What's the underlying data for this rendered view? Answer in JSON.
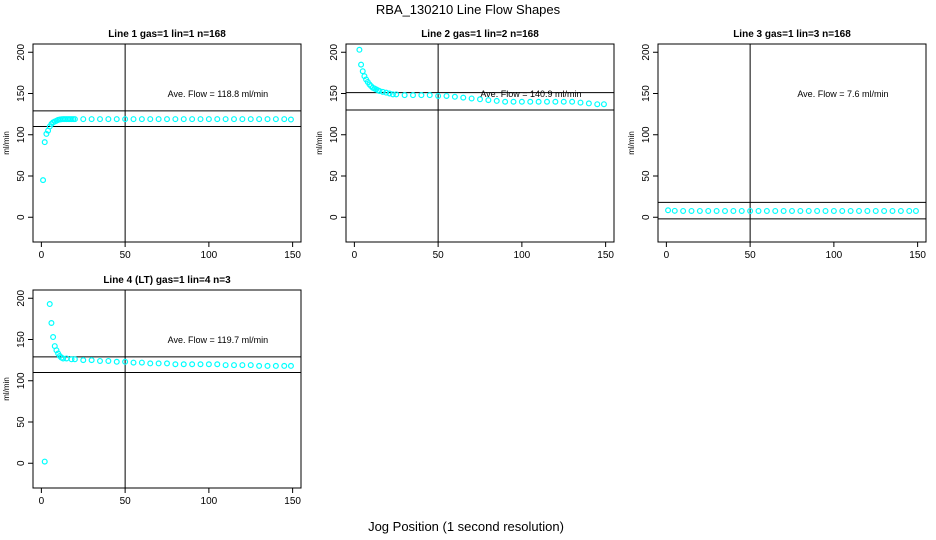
{
  "figure": {
    "title": "RBA_130210  Line Flow Shapes",
    "xlabel": "Jog Position (1 second resolution)"
  },
  "chart_data": [
    {
      "type": "scatter",
      "title": "Line 1 gas=1 lin=1 n=168",
      "xlabel": "",
      "ylabel": "ml/min",
      "xlim": [
        -5,
        155
      ],
      "ylim": [
        -30,
        210
      ],
      "xticks": [
        0,
        50,
        100,
        150
      ],
      "yticks": [
        0,
        50,
        100,
        150,
        200
      ],
      "grid": false,
      "point_color": "#00FFFF",
      "annotation": "Ave. Flow =  118.8  ml/min",
      "hlines": [
        110,
        129
      ],
      "vline": 50,
      "series": [
        {
          "x": [
            1,
            2,
            3,
            4,
            5,
            6,
            7,
            8,
            9,
            10,
            11,
            12,
            13,
            14,
            15,
            16,
            17,
            18,
            19,
            20,
            25,
            30,
            35,
            40,
            45,
            50,
            55,
            60,
            65,
            70,
            75,
            80,
            85,
            90,
            95,
            100,
            105,
            110,
            115,
            120,
            125,
            130,
            135,
            140,
            145,
            149
          ],
          "y": [
            45,
            91,
            101,
            105,
            110,
            113,
            115,
            116,
            117,
            118,
            118.5,
            118.8,
            119,
            119,
            119,
            119,
            119,
            119,
            119,
            119,
            119,
            119,
            119,
            119,
            119,
            119,
            119,
            119,
            119,
            119,
            119,
            119,
            119,
            119,
            119,
            119,
            119,
            119,
            119,
            119,
            119,
            119,
            119,
            119,
            119,
            118.5
          ]
        }
      ]
    },
    {
      "type": "scatter",
      "title": "Line 2 gas=1 lin=2 n=168",
      "xlabel": "",
      "ylabel": "ml/min",
      "xlim": [
        -5,
        155
      ],
      "ylim": [
        -30,
        210
      ],
      "xticks": [
        0,
        50,
        100,
        150
      ],
      "yticks": [
        0,
        50,
        100,
        150,
        200
      ],
      "grid": false,
      "point_color": "#00FFFF",
      "annotation": "Ave. Flow =  140.9  ml/min",
      "hlines": [
        130,
        151
      ],
      "vline": 50,
      "series": [
        {
          "x": [
            3,
            4,
            5,
            6,
            7,
            8,
            9,
            10,
            11,
            12,
            13,
            14,
            15,
            17,
            19,
            21,
            23,
            25,
            30,
            35,
            40,
            45,
            50,
            55,
            60,
            65,
            70,
            75,
            80,
            85,
            90,
            95,
            100,
            105,
            110,
            115,
            120,
            125,
            130,
            135,
            140,
            145,
            149
          ],
          "y": [
            203,
            185,
            177,
            171,
            167,
            164,
            161,
            159,
            157,
            156,
            155,
            154,
            153,
            152,
            151,
            150,
            149,
            149,
            148,
            148,
            148,
            148,
            147,
            147,
            146,
            145,
            144,
            143,
            142,
            141,
            140,
            140,
            140,
            140,
            140,
            140,
            140,
            140,
            140,
            139,
            138,
            137,
            137
          ]
        }
      ]
    },
    {
      "type": "scatter",
      "title": "Line 3 gas=1 lin=3 n=168",
      "xlabel": "",
      "ylabel": "ml/min",
      "xlim": [
        -5,
        155
      ],
      "ylim": [
        -30,
        210
      ],
      "xticks": [
        0,
        50,
        100,
        150
      ],
      "yticks": [
        0,
        50,
        100,
        150,
        200
      ],
      "grid": false,
      "point_color": "#00FFFF",
      "annotation": "Ave. Flow =  7.6  ml/min",
      "hlines": [
        -2,
        18
      ],
      "vline": 50,
      "series": [
        {
          "x": [
            1,
            5,
            10,
            15,
            20,
            25,
            30,
            35,
            40,
            45,
            50,
            55,
            60,
            65,
            70,
            75,
            80,
            85,
            90,
            95,
            100,
            105,
            110,
            115,
            120,
            125,
            130,
            135,
            140,
            145,
            149
          ],
          "y": [
            8.5,
            7.8,
            7.6,
            7.6,
            7.6,
            7.6,
            7.6,
            7.6,
            7.6,
            7.6,
            7.6,
            7.6,
            7.6,
            7.6,
            7.6,
            7.6,
            7.6,
            7.6,
            7.6,
            7.6,
            7.6,
            7.6,
            7.6,
            7.6,
            7.6,
            7.6,
            7.6,
            7.6,
            7.6,
            7.6,
            7.6
          ]
        }
      ]
    },
    {
      "type": "scatter",
      "title": "Line 4 (LT) gas=1 lin=4 n=3",
      "xlabel": "",
      "ylabel": "ml/min",
      "xlim": [
        -5,
        155
      ],
      "ylim": [
        -30,
        210
      ],
      "xticks": [
        0,
        50,
        100,
        150
      ],
      "yticks": [
        0,
        50,
        100,
        150,
        200
      ],
      "grid": false,
      "point_color": "#00FFFF",
      "annotation": "Ave. Flow =  119.7  ml/min",
      "hlines": [
        110,
        129
      ],
      "vline": 50,
      "series": [
        {
          "x": [
            2,
            5,
            6,
            7,
            8,
            9,
            10,
            11,
            12,
            13,
            15,
            18,
            20,
            25,
            30,
            35,
            40,
            45,
            50,
            55,
            60,
            65,
            70,
            75,
            80,
            85,
            90,
            95,
            100,
            105,
            110,
            115,
            120,
            125,
            130,
            135,
            140,
            145,
            149
          ],
          "y": [
            2,
            193,
            170,
            153,
            142,
            137,
            133,
            130,
            128,
            127,
            127,
            126,
            126,
            125,
            125,
            124,
            124,
            123,
            123,
            122,
            122,
            121,
            121,
            121,
            120,
            120,
            120,
            120,
            120,
            120,
            119,
            119,
            119,
            119,
            118,
            118,
            118,
            118,
            118
          ]
        }
      ]
    }
  ]
}
